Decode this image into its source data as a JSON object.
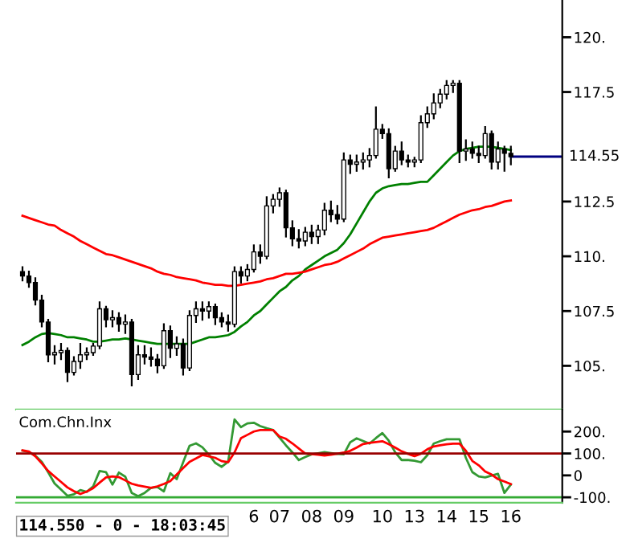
{
  "chart_data": [
    {
      "type": "candlestick",
      "color": "#000000",
      "categories": [
        null,
        null,
        null,
        null,
        null,
        null,
        null,
        null,
        null,
        null,
        null,
        null,
        null,
        null,
        null,
        null,
        null,
        null,
        null,
        null,
        null,
        null,
        null,
        null,
        null,
        null,
        null,
        null,
        null,
        null,
        null,
        null,
        null,
        null,
        null,
        null,
        null,
        null,
        null,
        null,
        null,
        null,
        null,
        null,
        null,
        null,
        null,
        null,
        null,
        null,
        null,
        null,
        null,
        null,
        null,
        null,
        null,
        null,
        null,
        null,
        null,
        null,
        null,
        null,
        null,
        null,
        null,
        null,
        null,
        null,
        null,
        null,
        null,
        null,
        null,
        null,
        null
      ],
      "ohlc": [
        [
          109.3,
          109.5,
          108.9,
          109.1
        ],
        [
          109.1,
          109.3,
          108.6,
          108.8
        ],
        [
          108.8,
          109.0,
          107.8,
          108.0
        ],
        [
          108.0,
          108.2,
          106.8,
          107.0
        ],
        [
          107.0,
          107.1,
          105.2,
          105.5
        ],
        [
          105.5,
          105.9,
          105.1,
          105.6
        ],
        [
          105.6,
          106.0,
          105.3,
          105.7
        ],
        [
          105.7,
          105.8,
          104.3,
          104.7
        ],
        [
          104.7,
          105.4,
          104.6,
          105.2
        ],
        [
          105.2,
          106.0,
          104.9,
          105.5
        ],
        [
          105.5,
          105.8,
          105.3,
          105.6
        ],
        [
          105.6,
          106.0,
          105.5,
          105.9
        ],
        [
          105.9,
          107.9,
          105.8,
          107.6
        ],
        [
          107.6,
          107.7,
          106.8,
          107.1
        ],
        [
          107.1,
          107.5,
          106.8,
          107.2
        ],
        [
          107.2,
          107.4,
          106.6,
          106.9
        ],
        [
          106.9,
          107.3,
          106.5,
          107.0
        ],
        [
          107.0,
          107.1,
          104.1,
          104.6
        ],
        [
          104.6,
          105.9,
          104.4,
          105.5
        ],
        [
          105.5,
          105.9,
          105.1,
          105.4
        ],
        [
          105.4,
          105.8,
          105.0,
          105.3
        ],
        [
          105.3,
          105.5,
          104.7,
          105.0
        ],
        [
          105.0,
          106.9,
          104.9,
          106.6
        ],
        [
          106.6,
          106.8,
          105.4,
          105.8
        ],
        [
          105.8,
          106.3,
          105.5,
          106.0
        ],
        [
          106.0,
          106.2,
          104.6,
          104.9
        ],
        [
          104.9,
          107.5,
          104.8,
          107.3
        ],
        [
          107.3,
          107.9,
          107.0,
          107.6
        ],
        [
          107.6,
          107.9,
          107.1,
          107.5
        ],
        [
          107.5,
          107.9,
          107.2,
          107.7
        ],
        [
          107.7,
          107.8,
          106.9,
          107.2
        ],
        [
          107.2,
          107.4,
          106.8,
          107.0
        ],
        [
          107.0,
          107.3,
          106.6,
          106.9
        ],
        [
          106.9,
          109.5,
          106.8,
          109.3
        ],
        [
          109.3,
          109.5,
          108.8,
          109.1
        ],
        [
          109.1,
          109.6,
          108.9,
          109.4
        ],
        [
          109.4,
          110.5,
          109.3,
          110.2
        ],
        [
          110.2,
          110.5,
          109.7,
          110.0
        ],
        [
          110.0,
          112.7,
          109.9,
          112.3
        ],
        [
          112.3,
          112.8,
          112.0,
          112.6
        ],
        [
          112.6,
          113.1,
          112.3,
          112.9
        ],
        [
          112.9,
          113.0,
          110.9,
          111.3
        ],
        [
          111.3,
          111.6,
          110.5,
          110.8
        ],
        [
          110.8,
          111.2,
          110.4,
          110.7
        ],
        [
          110.7,
          111.3,
          110.5,
          111.1
        ],
        [
          111.1,
          111.4,
          110.6,
          110.9
        ],
        [
          110.9,
          111.4,
          110.6,
          111.2
        ],
        [
          111.2,
          112.4,
          111.0,
          112.1
        ],
        [
          112.1,
          112.5,
          111.6,
          111.9
        ],
        [
          111.9,
          112.3,
          111.5,
          111.7
        ],
        [
          111.7,
          114.7,
          111.6,
          114.4
        ],
        [
          114.4,
          114.6,
          113.8,
          114.2
        ],
        [
          114.2,
          114.6,
          113.9,
          114.3
        ],
        [
          114.3,
          114.7,
          114.0,
          114.4
        ],
        [
          114.4,
          114.9,
          114.1,
          114.6
        ],
        [
          114.6,
          116.8,
          114.5,
          115.8
        ],
        [
          115.8,
          116.0,
          115.4,
          115.6
        ],
        [
          115.6,
          115.8,
          113.6,
          114.0
        ],
        [
          114.0,
          115.0,
          113.9,
          114.8
        ],
        [
          114.8,
          115.2,
          114.2,
          114.4
        ],
        [
          114.4,
          114.6,
          114.1,
          114.3
        ],
        [
          114.3,
          114.5,
          114.1,
          114.4
        ],
        [
          114.4,
          116.4,
          114.3,
          116.1
        ],
        [
          116.1,
          116.8,
          115.9,
          116.5
        ],
        [
          116.5,
          117.4,
          116.3,
          117.0
        ],
        [
          117.0,
          117.6,
          116.8,
          117.4
        ],
        [
          117.4,
          118.0,
          117.2,
          117.8
        ],
        [
          117.8,
          118.0,
          117.5,
          117.9
        ],
        [
          117.9,
          118.0,
          114.3,
          114.8
        ],
        [
          114.8,
          115.3,
          114.4,
          114.9
        ],
        [
          114.9,
          115.2,
          114.5,
          114.7
        ],
        [
          114.7,
          115.0,
          114.3,
          114.6
        ],
        [
          114.6,
          115.9,
          114.5,
          115.6
        ],
        [
          115.6,
          115.7,
          114.0,
          114.3
        ],
        [
          114.3,
          115.2,
          114.0,
          114.9
        ],
        [
          114.9,
          115.0,
          113.9,
          114.7
        ],
        [
          114.7,
          115.0,
          114.2,
          114.55
        ]
      ],
      "series": [
        {
          "type": "line",
          "color": "#008000",
          "values": [
            105.95,
            106.1,
            106.3,
            106.45,
            106.5,
            106.45,
            106.4,
            106.3,
            106.3,
            106.25,
            106.2,
            106.1,
            106.1,
            106.15,
            106.2,
            106.2,
            106.25,
            106.2,
            106.15,
            106.1,
            106.05,
            106.0,
            106.0,
            106.0,
            106.0,
            106.0,
            106.0,
            106.1,
            106.2,
            106.3,
            106.3,
            106.35,
            106.4,
            106.55,
            106.8,
            107.0,
            107.3,
            107.5,
            107.8,
            108.1,
            108.4,
            108.6,
            108.9,
            109.1,
            109.4,
            109.6,
            109.8,
            110.0,
            110.15,
            110.3,
            110.6,
            111.0,
            111.5,
            112.0,
            112.5,
            112.9,
            113.1,
            113.2,
            113.25,
            113.3,
            113.3,
            113.35,
            113.4,
            113.4,
            113.7,
            114.0,
            114.3,
            114.6,
            114.8,
            114.9,
            114.95,
            115.0,
            115.0,
            115.0,
            114.95,
            114.9,
            114.85
          ]
        },
        {
          "type": "line",
          "color": "#ff0000",
          "values": [
            111.85,
            111.75,
            111.65,
            111.55,
            111.45,
            111.4,
            111.2,
            111.05,
            110.9,
            110.7,
            110.55,
            110.4,
            110.25,
            110.1,
            110.05,
            109.95,
            109.85,
            109.75,
            109.65,
            109.55,
            109.45,
            109.3,
            109.2,
            109.15,
            109.05,
            109.0,
            108.95,
            108.9,
            108.8,
            108.75,
            108.7,
            108.7,
            108.65,
            108.65,
            108.7,
            108.75,
            108.8,
            108.85,
            108.95,
            109.0,
            109.1,
            109.2,
            109.2,
            109.25,
            109.3,
            109.4,
            109.5,
            109.6,
            109.65,
            109.75,
            109.9,
            110.05,
            110.2,
            110.35,
            110.55,
            110.7,
            110.85,
            110.9,
            110.95,
            111.0,
            111.05,
            111.1,
            111.15,
            111.2,
            111.3,
            111.45,
            111.6,
            111.75,
            111.9,
            112.0,
            112.1,
            112.15,
            112.25,
            112.3,
            112.4,
            112.5,
            112.55
          ]
        }
      ],
      "ylim": [
        103.0,
        121.7
      ],
      "yticks": [
        {
          "value": 105,
          "label": "105."
        },
        {
          "value": 107.5,
          "label": "107.5"
        },
        {
          "value": 110,
          "label": "110."
        },
        {
          "value": 112.5,
          "label": "112.5"
        },
        {
          "value": 117.5,
          "label": "117.5"
        },
        {
          "value": 120,
          "label": "120."
        }
      ],
      "ref_lines": [
        {
          "axis": "y",
          "value": 114.55,
          "label": "114.55",
          "color": "#000080"
        }
      ],
      "tick_labels": "y"
    },
    {
      "type": "line",
      "title": "Com.Chn.Inx",
      "categories": [
        null,
        null,
        null,
        null,
        null,
        null,
        null,
        null,
        null,
        null,
        null,
        null,
        null,
        null,
        null,
        null,
        null,
        null,
        null,
        null,
        null,
        null,
        null,
        null,
        null,
        null,
        null,
        null,
        null,
        null,
        null,
        null,
        null,
        null,
        null,
        null,
        "6",
        null,
        null,
        null,
        "07",
        null,
        null,
        null,
        null,
        "08",
        null,
        null,
        null,
        null,
        "09",
        null,
        null,
        null,
        null,
        null,
        "10",
        null,
        null,
        null,
        null,
        "13",
        null,
        null,
        null,
        null,
        "14",
        null,
        null,
        null,
        null,
        "15",
        null,
        null,
        null,
        null,
        "16"
      ],
      "series": [
        {
          "color": "#339933",
          "values": [
            113,
            106,
            90,
            62,
            14,
            -37,
            -65,
            -93,
            -86,
            -67,
            -75,
            -50,
            20,
            15,
            -42,
            13,
            -6,
            -80,
            -95,
            -80,
            -57,
            -53,
            -73,
            10,
            -17,
            60,
            135,
            146,
            128,
            95,
            57,
            39,
            62,
            255,
            220,
            237,
            240,
            225,
            215,
            207,
            172,
            137,
            105,
            70,
            84,
            96,
            101,
            106,
            102,
            98,
            96,
            151,
            169,
            157,
            145,
            170,
            193,
            158,
            105,
            70,
            70,
            67,
            60,
            92,
            145,
            156,
            165,
            165,
            165,
            80,
            15,
            -5,
            -9,
            -1,
            7,
            -80,
            -42
          ]
        },
        {
          "color": "#ff0000",
          "values": [
            114,
            109,
            87,
            55,
            20,
            -5,
            -30,
            -55,
            -72,
            -85,
            -74,
            -58,
            -33,
            -9,
            -5,
            -8,
            -23,
            -38,
            -46,
            -51,
            -57,
            -50,
            -39,
            -26,
            4,
            33,
            62,
            77,
            93,
            87,
            80,
            65,
            60,
            105,
            170,
            185,
            200,
            207,
            207,
            207,
            177,
            167,
            146,
            123,
            100,
            97,
            94,
            91,
            94,
            99,
            104,
            112,
            127,
            143,
            148,
            152,
            156,
            142,
            127,
            110,
            98,
            88,
            99,
            119,
            132,
            137,
            142,
            145,
            145,
            112,
            66,
            46,
            18,
            4,
            -17,
            -28,
            -40
          ]
        }
      ],
      "ylim": [
        -125,
        300
      ],
      "yticks": [
        {
          "value": 200,
          "label": "200."
        },
        {
          "value": 100,
          "label": "100."
        },
        0,
        {
          "value": -100,
          "label": "-100."
        }
      ],
      "ref_lines": [
        {
          "axis": "y",
          "value": 100,
          "color": "#990000"
        },
        {
          "axis": "y",
          "value": -100,
          "color": "#33aa33"
        }
      ],
      "annotations": [
        "114.550 - 0 - 18:03:45"
      ]
    }
  ]
}
